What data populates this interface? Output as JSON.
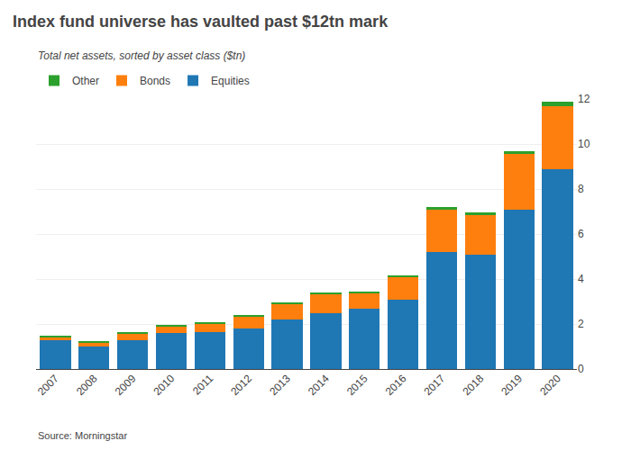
{
  "chart_data": {
    "type": "bar",
    "stacked": true,
    "title": "Index fund universe has vaulted past $12tn mark",
    "subtitle": "Total net assets, sorted by asset class ($tn)",
    "annotations": [
      "Source: Morningstar"
    ],
    "categories": [
      "2007",
      "2008",
      "2009",
      "2010",
      "2011",
      "2012",
      "2013",
      "2014",
      "2015",
      "2016",
      "2017",
      "2018",
      "2019",
      "2020"
    ],
    "series": [
      {
        "name": "Equities",
        "values": [
          1.3,
          1.0,
          1.3,
          1.6,
          1.65,
          1.8,
          2.2,
          2.5,
          2.7,
          3.1,
          5.2,
          5.1,
          7.1,
          8.9
        ]
      },
      {
        "name": "Bonds",
        "values": [
          0.12,
          0.18,
          0.28,
          0.28,
          0.38,
          0.55,
          0.7,
          0.85,
          0.68,
          1.0,
          1.9,
          1.75,
          2.45,
          2.8
        ]
      },
      {
        "name": "Other",
        "values": [
          0.08,
          0.04,
          0.07,
          0.07,
          0.07,
          0.07,
          0.07,
          0.07,
          0.07,
          0.07,
          0.1,
          0.1,
          0.15,
          0.2
        ]
      }
    ],
    "ylim": [
      0,
      12
    ],
    "yticks": [
      0,
      2,
      4,
      6,
      8,
      10,
      12
    ],
    "grid": true,
    "legend": "upper left"
  }
}
